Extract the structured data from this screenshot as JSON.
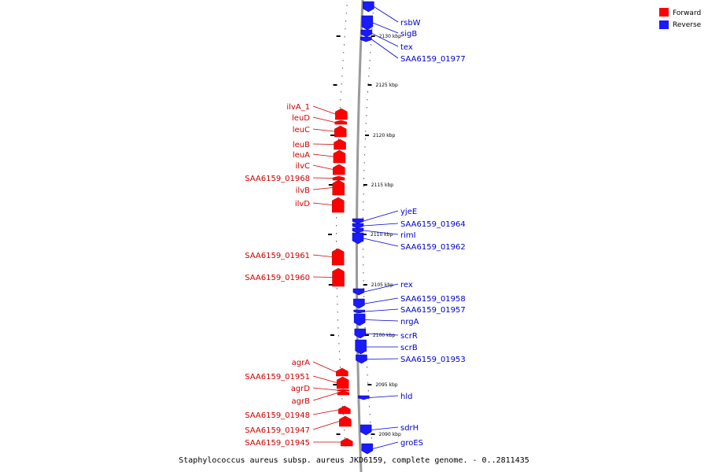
{
  "colors": {
    "forward": "#ff0000",
    "forward_label": "#cc0000",
    "reverse": "#1a1aff",
    "reverse_label": "#0000cc",
    "backbone": "#9a9a9a"
  },
  "legend": [
    {
      "label": "Forward",
      "color": "#ff0000"
    },
    {
      "label": "Reverse",
      "color": "#1a1aff"
    }
  ],
  "footer": "Staphylococcus aureus subsp. aureus JKD6159, complete genome. - 0..2811435",
  "ticks": [
    {
      "label": "2130 kbp"
    },
    {
      "label": "2125 kbp"
    },
    {
      "label": "2120 kbp"
    },
    {
      "label": "2115 kbp"
    },
    {
      "label": "2110 kbp"
    },
    {
      "label": "2105 kbp"
    },
    {
      "label": "2100 kbp"
    },
    {
      "label": "2095 kbp"
    },
    {
      "label": "2090 kbp"
    }
  ],
  "genes_forward": [
    "ilvA_1",
    "leuD",
    "leuC",
    "leuB",
    "leuA",
    "ilvC",
    "SAA6159_01968",
    "ilvB",
    "ilvD",
    "SAA6159_01961",
    "SAA6159_01960",
    "agrA",
    "SAA6159_01951",
    "agrD",
    "agrB",
    "SAA6159_01948",
    "SAA6159_01947",
    "SAA6159_01945"
  ],
  "genes_reverse": [
    "rsbW",
    "sigB",
    "tex",
    "SAA6159_01977",
    "yjeE",
    "SAA6159_01964",
    "rimI",
    "SAA6159_01962",
    "rex",
    "SAA6159_01958",
    "SAA6159_01957",
    "nrgA",
    "scrR",
    "scrB",
    "SAA6159_01953",
    "hld",
    "sdrH",
    "groES"
  ]
}
